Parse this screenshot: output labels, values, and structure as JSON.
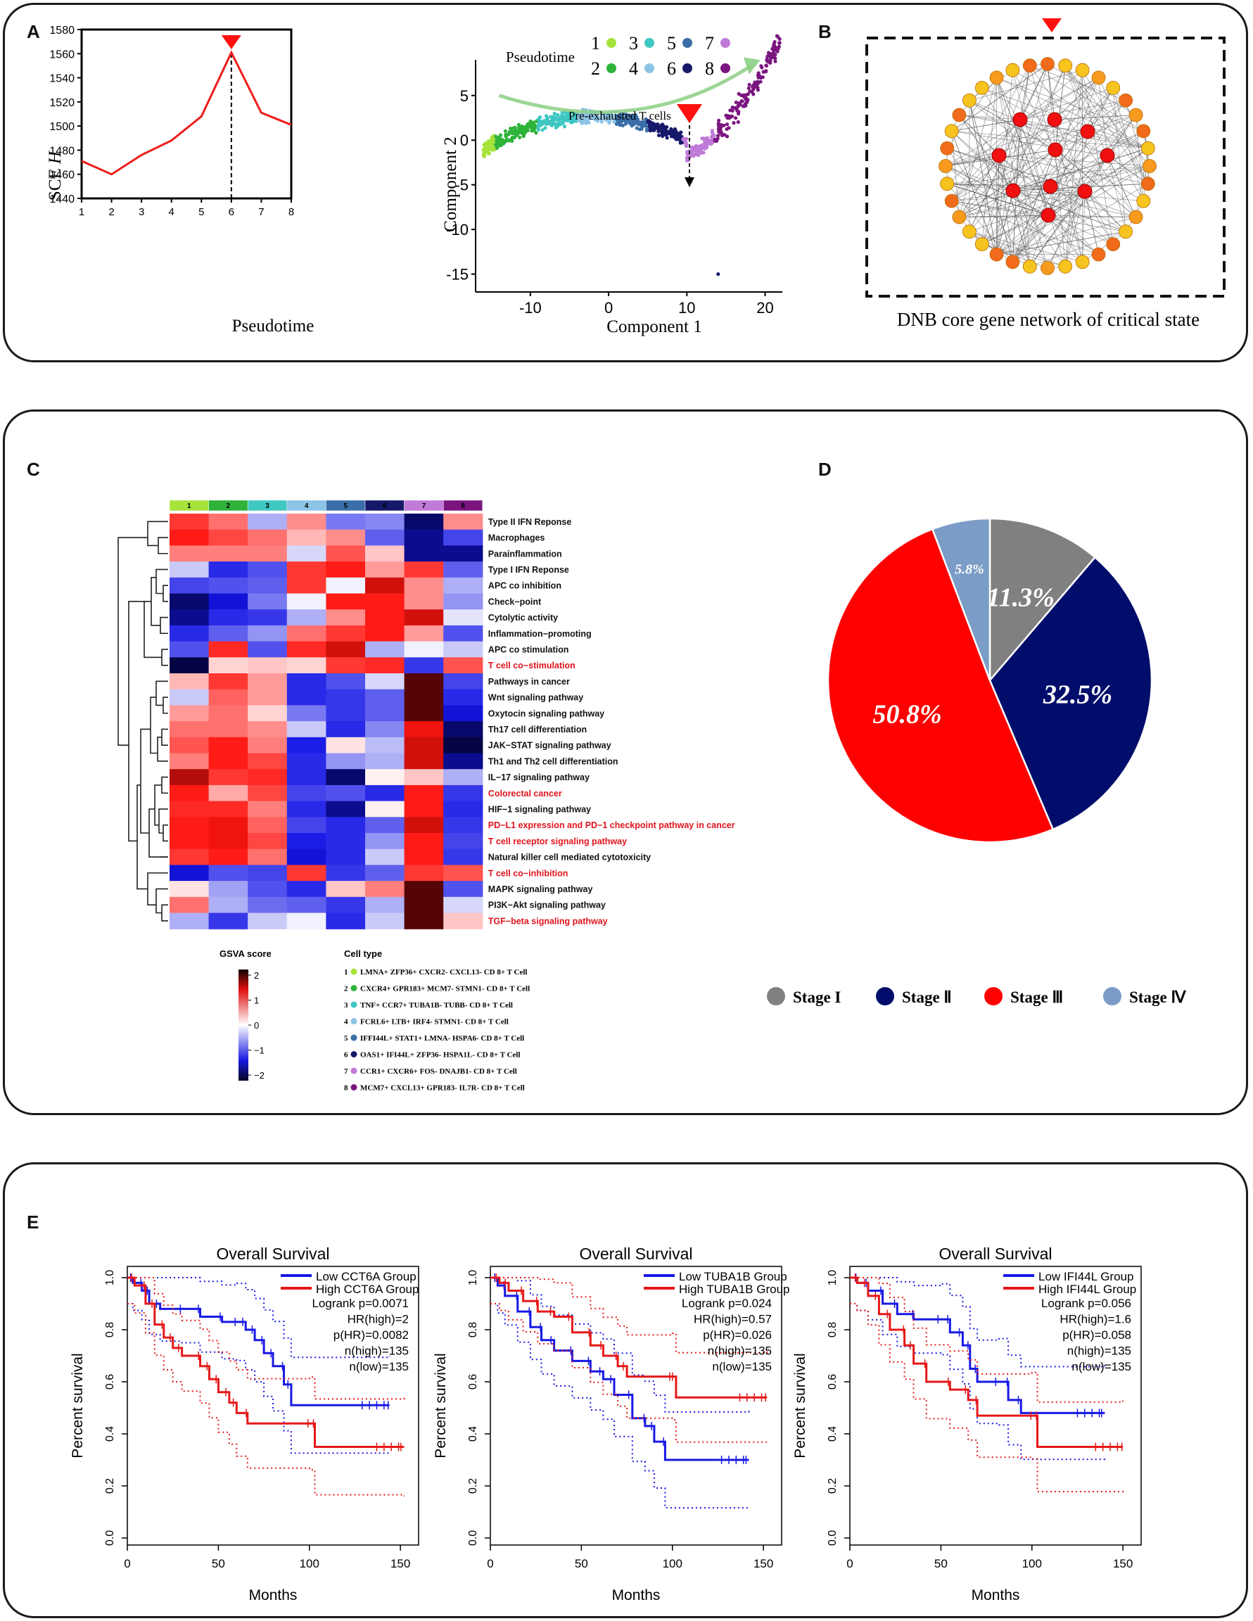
{
  "panels": {
    "a": "A",
    "b": "B",
    "c": "C",
    "d": "D",
    "e": "E"
  },
  "sce": {
    "type": "line",
    "x": [
      1,
      2,
      3,
      4,
      5,
      6,
      7,
      8
    ],
    "y": [
      1471,
      1460,
      1476,
      1488,
      1508,
      1561,
      1511,
      1501
    ],
    "xlabel": "Pseudotime",
    "ylabel": "SCE",
    "ylabel_italic": "H",
    "xlim": [
      1,
      8
    ],
    "ylim": [
      1440,
      1580
    ],
    "yticks": [
      1440,
      1460,
      1480,
      1500,
      1520,
      1540,
      1560,
      1580
    ],
    "marker_x": 6
  },
  "traj": {
    "legend_title": "Pseudotime",
    "states": [
      {
        "label": "1",
        "color": "#a6e33b"
      },
      {
        "label": "2",
        "color": "#2fb33b"
      },
      {
        "label": "3",
        "color": "#3fc7c2"
      },
      {
        "label": "4",
        "color": "#8cc4e6"
      },
      {
        "label": "5",
        "color": "#3a6ea8"
      },
      {
        "label": "6",
        "color": "#16196a"
      },
      {
        "label": "7",
        "color": "#c07ad8"
      },
      {
        "label": "8",
        "color": "#7a1580"
      }
    ],
    "annotation": "Pre-exhausted T cells",
    "xlabel": "Component 1",
    "ylabel": "Component 2",
    "xticks": [
      -10,
      0,
      10,
      20
    ],
    "yticks": [
      5,
      0,
      -5,
      -10,
      -15
    ],
    "xlim": [
      -17,
      24
    ],
    "ylim": [
      -17,
      9
    ]
  },
  "network": {
    "caption": "DNB core gene network of critical state"
  },
  "heatmap": {
    "columns": [
      "1",
      "2",
      "3",
      "4",
      "5",
      "6",
      "7",
      "8"
    ],
    "column_colors": [
      "#a6e33b",
      "#2fb33b",
      "#3fc7c2",
      "#8cc4e6",
      "#3a6ea8",
      "#16196a",
      "#c07ad8",
      "#7a1580"
    ],
    "rows": [
      {
        "label": "Type II IFN Reponse",
        "red": false,
        "values": [
          1.4,
          1.0,
          -0.6,
          0.8,
          -1.0,
          -0.9,
          -2.1,
          0.8
        ]
      },
      {
        "label": "Macrophages",
        "red": false,
        "values": [
          1.6,
          1.3,
          1.0,
          0.5,
          0.8,
          -1.2,
          -2.0,
          -1.4
        ]
      },
      {
        "label": "Parainflammation",
        "red": false,
        "values": [
          0.9,
          0.9,
          0.9,
          -0.3,
          1.2,
          0.4,
          -2.0,
          -2.0
        ]
      },
      {
        "label": "Type I IFN Reponse",
        "red": false,
        "values": [
          -0.4,
          -1.6,
          -1.3,
          1.4,
          1.6,
          0.7,
          1.4,
          -1.2
        ]
      },
      {
        "label": "APC co inhibition",
        "red": false,
        "values": [
          -1.4,
          -1.3,
          -1.2,
          1.4,
          -0.1,
          1.8,
          0.8,
          -0.6
        ]
      },
      {
        "label": "Check−point",
        "red": false,
        "values": [
          -2.1,
          -1.8,
          -1.0,
          -0.1,
          1.6,
          1.6,
          0.8,
          -0.8
        ]
      },
      {
        "label": "Cytolytic activity",
        "red": false,
        "values": [
          -2.0,
          -1.6,
          -1.5,
          -0.6,
          0.8,
          1.6,
          1.8,
          -0.2
        ]
      },
      {
        "label": "Inflammation−promoting",
        "red": false,
        "values": [
          -1.6,
          -1.2,
          -0.8,
          1.0,
          1.4,
          1.6,
          0.7,
          -1.3
        ]
      },
      {
        "label": "APC co stimulation",
        "red": false,
        "values": [
          -1.3,
          1.5,
          -1.3,
          1.5,
          1.8,
          -0.6,
          -0.1,
          -0.4
        ]
      },
      {
        "label": "T cell co−stimulation",
        "red": true,
        "values": [
          -2.3,
          0.3,
          0.4,
          0.3,
          1.4,
          1.5,
          -1.5,
          1.2
        ]
      },
      {
        "label": "Pathways in cancer",
        "red": false,
        "values": [
          0.5,
          1.4,
          0.7,
          -1.6,
          -1.3,
          -0.3,
          2.2,
          -1.4
        ]
      },
      {
        "label": "Wnt signaling pathway",
        "red": false,
        "values": [
          -0.4,
          1.1,
          0.7,
          -1.6,
          -1.5,
          -1.2,
          2.4,
          -1.6
        ]
      },
      {
        "label": "Oxytocin signaling pathway",
        "red": false,
        "values": [
          0.7,
          1.0,
          0.3,
          -1.0,
          -1.5,
          -1.2,
          2.5,
          -1.8
        ]
      },
      {
        "label": "Th17 cell differentiation",
        "red": false,
        "values": [
          1.0,
          1.0,
          0.8,
          -0.4,
          -1.6,
          -0.9,
          1.7,
          -2.1
        ]
      },
      {
        "label": "JAK−STAT signaling pathway",
        "red": false,
        "values": [
          1.2,
          1.6,
          0.9,
          -1.7,
          0.2,
          -0.5,
          1.8,
          -2.2
        ]
      },
      {
        "label": "Th1 and Th2 cell differentiation",
        "red": false,
        "values": [
          0.9,
          1.6,
          1.3,
          -1.6,
          -0.8,
          -0.6,
          1.8,
          -2.0
        ]
      },
      {
        "label": "IL−17 signaling pathway",
        "red": false,
        "values": [
          1.9,
          1.4,
          1.5,
          -1.6,
          -2.1,
          0.1,
          0.4,
          -0.6
        ]
      },
      {
        "label": "Colorectal cancer",
        "red": true,
        "values": [
          1.6,
          0.6,
          1.3,
          -1.4,
          -1.3,
          -1.6,
          1.6,
          -1.5
        ]
      },
      {
        "label": "HIF−1 signaling pathway",
        "red": false,
        "values": [
          1.5,
          1.5,
          0.9,
          -1.6,
          -2.0,
          0.1,
          1.6,
          -1.6
        ]
      },
      {
        "label": "PD−L1 expression and PD−1 checkpoint pathway in cancer",
        "red": true,
        "values": [
          1.6,
          1.7,
          1.1,
          -1.4,
          -1.6,
          -1.2,
          1.8,
          -1.5
        ]
      },
      {
        "label": "T cell receptor signaling pathway",
        "red": true,
        "values": [
          1.6,
          1.7,
          1.3,
          -1.7,
          -1.6,
          -0.8,
          1.6,
          -1.4
        ]
      },
      {
        "label": "Natural killer cell mediated cytotoxicity",
        "red": false,
        "values": [
          1.4,
          1.6,
          1.0,
          -1.8,
          -1.6,
          -0.4,
          1.6,
          -1.5
        ]
      },
      {
        "label": "T cell co−inhibition",
        "red": true,
        "values": [
          -1.8,
          -1.3,
          -1.4,
          1.4,
          -1.5,
          -1.2,
          1.4,
          1.2
        ]
      },
      {
        "label": "MAPK signaling pathway",
        "red": false,
        "values": [
          0.2,
          -0.7,
          -1.3,
          -1.6,
          0.4,
          0.9,
          2.7,
          -1.3
        ]
      },
      {
        "label": "PI3K−Akt signaling pathway",
        "red": false,
        "values": [
          1.0,
          -0.6,
          -1.1,
          -1.2,
          -1.5,
          -0.6,
          2.9,
          -0.3
        ]
      },
      {
        "label": "TGF−beta signaling pathway",
        "red": true,
        "values": [
          -0.6,
          -1.5,
          -0.4,
          -0.1,
          -1.6,
          -0.4,
          2.9,
          0.4
        ]
      }
    ],
    "scale_title": "GSVA score",
    "scale_ticks": [
      "2",
      "1",
      "0",
      "−1",
      "−2"
    ],
    "celltype_title": "Cell type",
    "celltypes": [
      "LMNA+ ZFP36+ CXCR2- CXCL13- CD 8+ T Cell",
      "CXCR4+ GPR183+ MCM7- STMN1- CD 8+ T Cell",
      "TNF+ CCR7+ TUBA1B- TUBB- CD 8+ T Cell",
      "FCRL6+ LTB+ IRF4- STMN1- CD 8+ T Cell",
      "IFFI44L+ STAT1+ LMNA- HSPA6- CD 8+ T Cell",
      "OAS1+ IFI44L+ ZFP36- HSPA1L- CD 8+ T Cell",
      "CCR1+ CXCR6+ FOS- DNAJB1- CD 8+ T Cell",
      "MCM7+ CXCL13+ GPR183- IL7R- CD 8+ T Cell"
    ]
  },
  "pie": {
    "type": "pie",
    "slices": [
      {
        "label": "Stage I",
        "value": 11.3,
        "text": "11.3%",
        "color": "#808080"
      },
      {
        "label": "Stage Ⅱ",
        "value": 32.5,
        "text": "32.5%",
        "color": "#000d6b"
      },
      {
        "label": "Stage Ⅲ",
        "value": 50.8,
        "text": "50.8%",
        "color": "#ff0000"
      },
      {
        "label": "Stage Ⅳ",
        "value": 5.8,
        "text": "5.8%",
        "color": "#7a9cc6"
      }
    ]
  },
  "survival": [
    {
      "title": "Overall Survival",
      "xlabel": "Months",
      "ylabel": "Percent survival",
      "legend": [
        "Low CCT6A Group",
        "High CCT6A Group"
      ],
      "stats": [
        "Logrank p=0.0071",
        "HR(high)=2",
        "p(HR)=0.0082",
        "n(high)=135",
        "n(low)=135"
      ],
      "low": [
        [
          0,
          1
        ],
        [
          3,
          0.98
        ],
        [
          8,
          0.95
        ],
        [
          12,
          0.9
        ],
        [
          18,
          0.88
        ],
        [
          30,
          0.88
        ],
        [
          40,
          0.85
        ],
        [
          52,
          0.83
        ],
        [
          60,
          0.83
        ],
        [
          65,
          0.8
        ],
        [
          70,
          0.76
        ],
        [
          75,
          0.71
        ],
        [
          80,
          0.66
        ],
        [
          86,
          0.59
        ],
        [
          90,
          0.51
        ],
        [
          144,
          0.51
        ]
      ],
      "high": [
        [
          0,
          1
        ],
        [
          4,
          0.97
        ],
        [
          10,
          0.9
        ],
        [
          15,
          0.82
        ],
        [
          20,
          0.77
        ],
        [
          25,
          0.73
        ],
        [
          30,
          0.7
        ],
        [
          40,
          0.66
        ],
        [
          45,
          0.61
        ],
        [
          50,
          0.56
        ],
        [
          56,
          0.52
        ],
        [
          60,
          0.48
        ],
        [
          66,
          0.44
        ],
        [
          100,
          0.44
        ],
        [
          103,
          0.35
        ],
        [
          152,
          0.35
        ]
      ]
    },
    {
      "title": "Overall Survival",
      "xlabel": "Months",
      "ylabel": "Percent survival",
      "legend": [
        "Low TUBA1B Group",
        "High TUBA1B Group"
      ],
      "stats": [
        "Logrank p=0.024",
        "HR(high)=0.57",
        "p(HR)=0.026",
        "n(high)=135",
        "n(low)=135"
      ],
      "low": [
        [
          0,
          1
        ],
        [
          4,
          0.97
        ],
        [
          8,
          0.93
        ],
        [
          15,
          0.87
        ],
        [
          22,
          0.81
        ],
        [
          28,
          0.76
        ],
        [
          35,
          0.72
        ],
        [
          45,
          0.68
        ],
        [
          55,
          0.64
        ],
        [
          62,
          0.61
        ],
        [
          68,
          0.55
        ],
        [
          78,
          0.46
        ],
        [
          85,
          0.43
        ],
        [
          90,
          0.37
        ],
        [
          96,
          0.3
        ],
        [
          142,
          0.3
        ]
      ],
      "high": [
        [
          0,
          1
        ],
        [
          5,
          0.98
        ],
        [
          10,
          0.95
        ],
        [
          18,
          0.91
        ],
        [
          26,
          0.87
        ],
        [
          35,
          0.85
        ],
        [
          45,
          0.79
        ],
        [
          55,
          0.74
        ],
        [
          62,
          0.7
        ],
        [
          70,
          0.66
        ],
        [
          75,
          0.62
        ],
        [
          100,
          0.62
        ],
        [
          102,
          0.54
        ],
        [
          152,
          0.54
        ]
      ]
    },
    {
      "title": "Overall Survival",
      "xlabel": "Months",
      "ylabel": "Percent survival",
      "legend": [
        "Low IFI44L Group",
        "High IFI44L Group"
      ],
      "stats": [
        "Logrank p=0.056",
        "HR(high)=1.6",
        "p(HR)=0.058",
        "n(high)=135",
        "n(low)=135"
      ],
      "low": [
        [
          0,
          1
        ],
        [
          4,
          0.98
        ],
        [
          10,
          0.95
        ],
        [
          18,
          0.9
        ],
        [
          26,
          0.86
        ],
        [
          35,
          0.84
        ],
        [
          50,
          0.84
        ],
        [
          55,
          0.79
        ],
        [
          62,
          0.74
        ],
        [
          66,
          0.65
        ],
        [
          70,
          0.6
        ],
        [
          82,
          0.6
        ],
        [
          87,
          0.53
        ],
        [
          94,
          0.48
        ],
        [
          140,
          0.48
        ]
      ],
      "high": [
        [
          0,
          1
        ],
        [
          4,
          0.98
        ],
        [
          10,
          0.93
        ],
        [
          16,
          0.86
        ],
        [
          22,
          0.8
        ],
        [
          30,
          0.74
        ],
        [
          35,
          0.67
        ],
        [
          42,
          0.6
        ],
        [
          55,
          0.57
        ],
        [
          65,
          0.53
        ],
        [
          70,
          0.47
        ],
        [
          100,
          0.47
        ],
        [
          103,
          0.35
        ],
        [
          150,
          0.35
        ]
      ]
    }
  ]
}
